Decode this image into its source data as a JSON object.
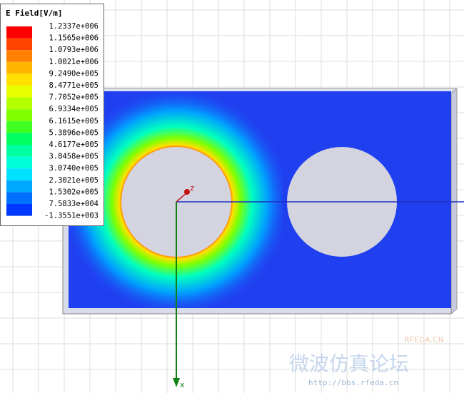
{
  "legend": {
    "title": "E Field[V/m]",
    "levels": [
      {
        "label": "1.2337e+006",
        "color": "#ff0000"
      },
      {
        "label": "1.1565e+006",
        "color": "#ff4200"
      },
      {
        "label": "1.0793e+006",
        "color": "#ff8000"
      },
      {
        "label": "1.0021e+006",
        "color": "#ffb400"
      },
      {
        "label": "9.2490e+005",
        "color": "#ffe000"
      },
      {
        "label": "8.4771e+005",
        "color": "#e8ff00"
      },
      {
        "label": "7.7052e+005",
        "color": "#b4ff00"
      },
      {
        "label": "6.9334e+005",
        "color": "#80ff00"
      },
      {
        "label": "6.1615e+005",
        "color": "#40ff20"
      },
      {
        "label": "5.3896e+005",
        "color": "#00ff60"
      },
      {
        "label": "4.6177e+005",
        "color": "#00ffa0"
      },
      {
        "label": "3.8458e+005",
        "color": "#00ffd8"
      },
      {
        "label": "3.0740e+005",
        "color": "#00e0ff"
      },
      {
        "label": "2.3021e+005",
        "color": "#00a8ff"
      },
      {
        "label": "1.5302e+005",
        "color": "#0070ff"
      },
      {
        "label": "7.5833e+004",
        "color": "#0038ff"
      },
      {
        "label": "-1.3551e+003",
        "color": "#0000ff"
      }
    ]
  },
  "axes": {
    "z": "z",
    "x": "x"
  },
  "watermark": {
    "site": "RFEDA.CN",
    "forum": "微波仿真论坛",
    "url": "http://bbs.rfeda.cn"
  }
}
